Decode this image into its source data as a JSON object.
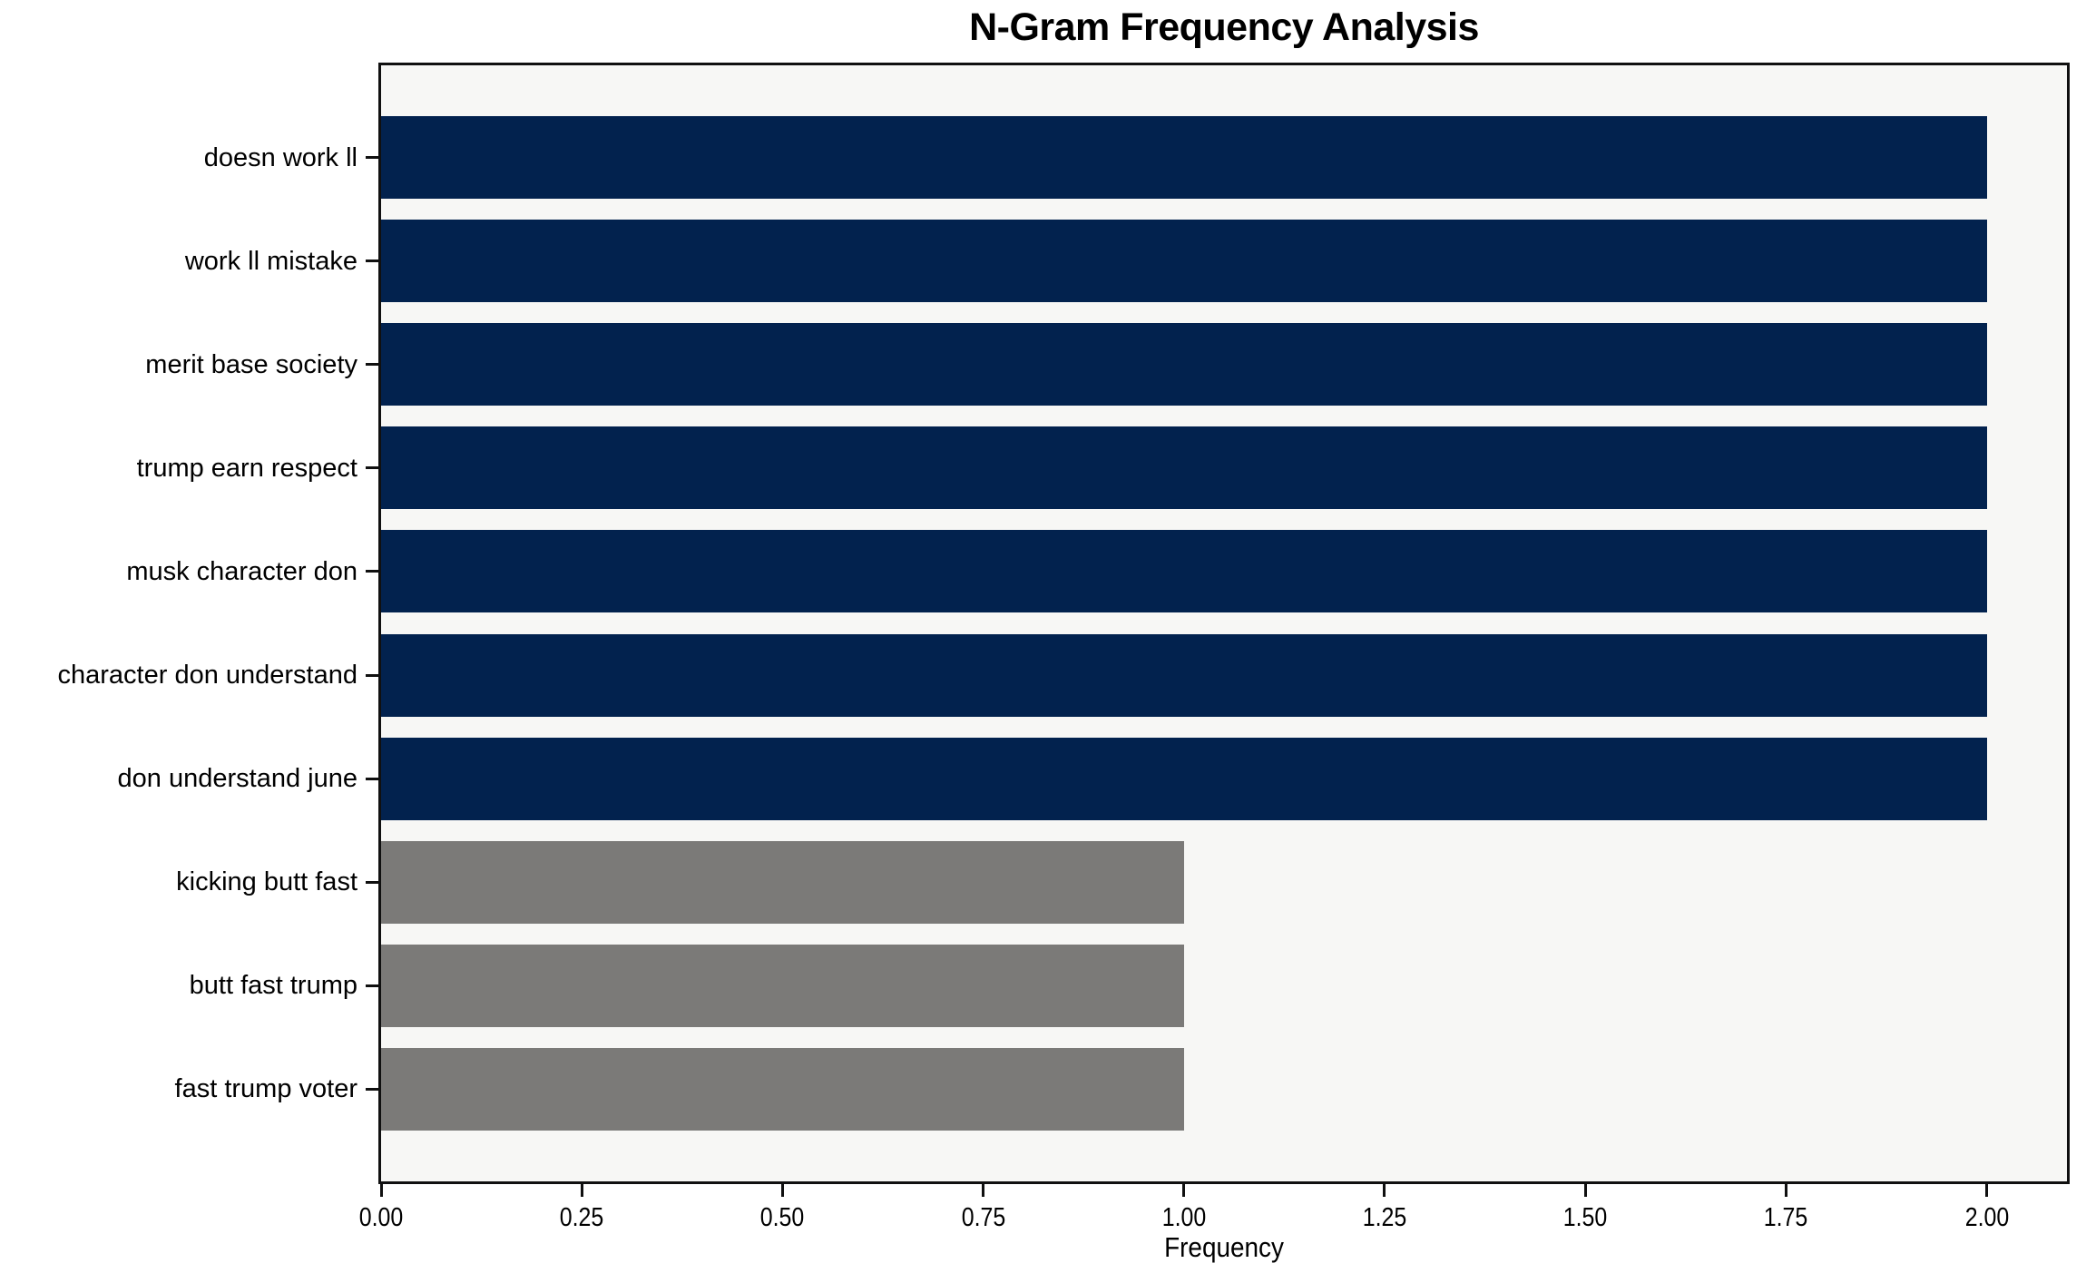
{
  "chart_data": {
    "type": "bar",
    "orientation": "horizontal",
    "title": "N-Gram Frequency Analysis",
    "xlabel": "Frequency",
    "ylabel": "",
    "categories": [
      "doesn work ll",
      "work ll mistake",
      "merit base society",
      "trump earn respect",
      "musk character don",
      "character don understand",
      "don understand june",
      "kicking butt fast",
      "butt fast trump",
      "fast trump voter"
    ],
    "values": [
      2,
      2,
      2,
      2,
      2,
      2,
      2,
      1,
      1,
      1
    ],
    "bar_colors": [
      "#02224e",
      "#02224e",
      "#02224e",
      "#02224e",
      "#02224e",
      "#02224e",
      "#02224e",
      "#7b7a78",
      "#7b7a78",
      "#7b7a78"
    ],
    "xlim": [
      0,
      2.1
    ],
    "x_ticks": [
      0,
      0.25,
      0.5,
      0.75,
      1,
      1.25,
      1.5,
      1.75,
      2
    ],
    "x_tick_labels": [
      "0.00",
      "0.25",
      "0.50",
      "0.75",
      "1.00",
      "1.25",
      "1.50",
      "1.75",
      "2.00"
    ],
    "grid": false,
    "legend": "none",
    "plot_background": "#f7f7f5",
    "axis_color": "#101010",
    "colors": {
      "high_frequency_bar": "#02224e",
      "low_frequency_bar": "#7b7a78"
    }
  }
}
